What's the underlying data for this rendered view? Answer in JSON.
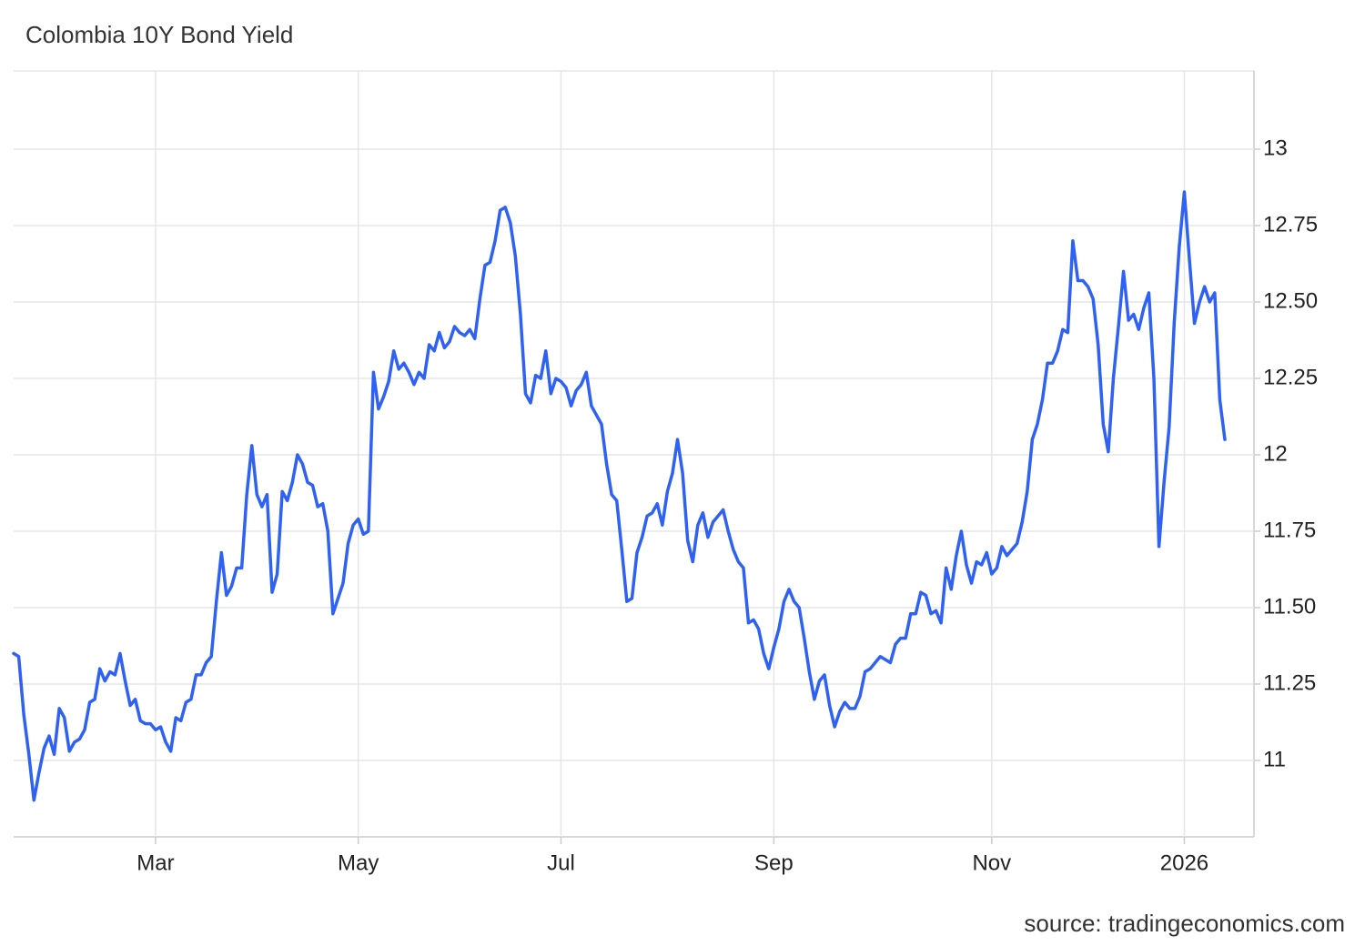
{
  "chart_data": {
    "type": "line",
    "title": "Colombia 10Y Bond Yield",
    "source": "source: tradingeconomics.com",
    "color": "#2f62f2",
    "grid": true,
    "ylim": [
      10.75,
      13.25
    ],
    "yticks": [
      11,
      11.25,
      {
        "value": 11.5,
        "label": "11.50"
      },
      11.75,
      12,
      12.25,
      {
        "value": 12.5,
        "label": "12.50"
      },
      12.75,
      13
    ],
    "categories": [
      null,
      null,
      null,
      null,
      null,
      null,
      null,
      null,
      null,
      null,
      null,
      null,
      null,
      null,
      null,
      null,
      null,
      null,
      null,
      null,
      null,
      null,
      null,
      null,
      null,
      null,
      null,
      null,
      "Mar",
      null,
      null,
      null,
      null,
      null,
      null,
      null,
      null,
      null,
      null,
      null,
      null,
      null,
      null,
      null,
      null,
      null,
      null,
      null,
      null,
      null,
      null,
      null,
      null,
      null,
      null,
      null,
      null,
      null,
      null,
      null,
      null,
      null,
      null,
      null,
      null,
      null,
      null,
      null,
      "May",
      null,
      null,
      null,
      null,
      null,
      null,
      null,
      null,
      null,
      null,
      null,
      null,
      null,
      null,
      null,
      null,
      null,
      null,
      null,
      null,
      null,
      null,
      null,
      null,
      null,
      null,
      null,
      null,
      null,
      null,
      null,
      null,
      null,
      null,
      null,
      null,
      null,
      null,
      null,
      "Jul",
      null,
      null,
      null,
      null,
      null,
      null,
      null,
      null,
      null,
      null,
      null,
      null,
      null,
      null,
      null,
      null,
      null,
      null,
      null,
      null,
      null,
      null,
      null,
      null,
      null,
      null,
      null,
      null,
      null,
      null,
      null,
      null,
      null,
      null,
      null,
      null,
      null,
      null,
      null,
      null,
      null,
      "Sep",
      null,
      null,
      null,
      null,
      null,
      null,
      null,
      null,
      null,
      null,
      null,
      null,
      null,
      null,
      null,
      null,
      null,
      null,
      null,
      null,
      null,
      null,
      null,
      null,
      null,
      null,
      null,
      null,
      null,
      null,
      null,
      null,
      null,
      null,
      null,
      null,
      null,
      null,
      null,
      null,
      null,
      null,
      "Nov",
      null,
      null,
      null,
      null,
      null,
      null,
      null,
      null,
      null,
      null,
      null,
      null,
      null,
      null,
      null,
      null,
      null,
      null,
      null,
      null,
      null,
      null,
      null,
      null,
      null,
      null,
      null,
      null,
      null,
      null,
      null,
      null,
      null,
      null,
      null,
      null,
      null,
      "2026",
      null,
      null,
      null,
      null,
      null,
      null,
      null,
      null
    ],
    "values": [
      11.35,
      11.34,
      11.15,
      11.02,
      10.87,
      10.96,
      11.04,
      11.08,
      11.02,
      11.17,
      11.14,
      11.03,
      11.06,
      11.07,
      11.1,
      11.19,
      11.2,
      11.3,
      11.26,
      11.29,
      11.28,
      11.35,
      11.26,
      11.18,
      11.2,
      11.13,
      11.12,
      11.12,
      11.1,
      11.11,
      11.06,
      11.03,
      11.14,
      11.13,
      11.19,
      11.2,
      11.28,
      11.28,
      11.32,
      11.34,
      11.52,
      11.68,
      11.54,
      11.57,
      11.63,
      11.63,
      11.87,
      12.03,
      11.87,
      11.83,
      11.87,
      11.55,
      11.61,
      11.88,
      11.85,
      11.91,
      12.0,
      11.97,
      11.91,
      11.9,
      11.83,
      11.84,
      11.75,
      11.48,
      11.53,
      11.58,
      11.71,
      11.77,
      11.79,
      11.74,
      11.75,
      12.27,
      12.15,
      12.19,
      12.24,
      12.34,
      12.28,
      12.3,
      12.27,
      12.23,
      12.27,
      12.25,
      12.36,
      12.34,
      12.4,
      12.35,
      12.37,
      12.42,
      12.4,
      12.39,
      12.41,
      12.38,
      12.51,
      12.62,
      12.63,
      12.7,
      12.8,
      12.81,
      12.76,
      12.65,
      12.46,
      12.2,
      12.17,
      12.26,
      12.25,
      12.34,
      12.2,
      12.25,
      12.24,
      12.22,
      12.16,
      12.21,
      12.23,
      12.27,
      12.16,
      12.13,
      12.1,
      11.97,
      11.87,
      11.85,
      11.69,
      11.52,
      11.53,
      11.68,
      11.73,
      11.8,
      11.81,
      11.84,
      11.77,
      11.88,
      11.94,
      12.05,
      11.94,
      11.72,
      11.65,
      11.77,
      11.81,
      11.73,
      11.78,
      11.8,
      11.82,
      11.75,
      11.69,
      11.65,
      11.63,
      11.45,
      11.46,
      11.43,
      11.35,
      11.3,
      11.37,
      11.43,
      11.52,
      11.56,
      11.52,
      11.5,
      11.4,
      11.29,
      11.2,
      11.26,
      11.28,
      11.18,
      11.11,
      11.16,
      11.19,
      11.17,
      11.17,
      11.21,
      11.29,
      11.3,
      11.32,
      11.34,
      11.33,
      11.32,
      11.38,
      11.4,
      11.4,
      11.48,
      11.48,
      11.55,
      11.54,
      11.48,
      11.49,
      11.45,
      11.63,
      11.56,
      11.67,
      11.75,
      11.64,
      11.58,
      11.65,
      11.64,
      11.68,
      11.61,
      11.63,
      11.7,
      11.67,
      11.69,
      11.71,
      11.78,
      11.88,
      12.05,
      12.1,
      12.18,
      12.3,
      12.3,
      12.34,
      12.41,
      12.4,
      12.7,
      12.57,
      12.57,
      12.55,
      12.51,
      12.36,
      12.1,
      12.01,
      12.25,
      12.42,
      12.6,
      12.44,
      12.46,
      12.41,
      12.48,
      12.53,
      12.25,
      11.7,
      11.91,
      12.09,
      12.43,
      12.68,
      12.86,
      12.64,
      12.43,
      12.5,
      12.55,
      12.5,
      12.53,
      12.18,
      12.05
    ]
  }
}
